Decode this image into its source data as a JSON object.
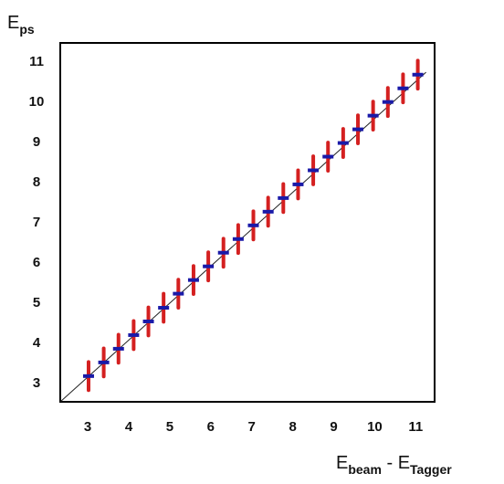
{
  "chart_data": {
    "type": "errorbar",
    "x_label": {
      "main": "E",
      "sub1": "beam",
      "sep": " - ",
      "main2": "E",
      "sub2": "Tagger"
    },
    "y_label": {
      "main": "E",
      "sub": "ps"
    },
    "x": [
      3.02,
      3.39,
      3.75,
      4.12,
      4.48,
      4.85,
      5.21,
      5.58,
      5.94,
      6.31,
      6.67,
      7.04,
      7.4,
      7.77,
      8.13,
      8.5,
      8.86,
      9.23,
      9.59,
      9.96,
      10.32,
      10.69,
      11.05
    ],
    "values": [
      3.19,
      3.53,
      3.87,
      4.21,
      4.55,
      4.89,
      5.24,
      5.58,
      5.92,
      6.26,
      6.6,
      6.94,
      7.28,
      7.62,
      7.96,
      8.31,
      8.65,
      8.99,
      9.33,
      9.67,
      10.01,
      10.35,
      10.69
    ],
    "errors": [
      0.35,
      0.35,
      0.35,
      0.35,
      0.35,
      0.35,
      0.35,
      0.35,
      0.35,
      0.35,
      0.35,
      0.35,
      0.35,
      0.35,
      0.35,
      0.35,
      0.35,
      0.35,
      0.35,
      0.35,
      0.35,
      0.35,
      0.35
    ],
    "color": "#1a1aa8",
    "error_color": "#d42020",
    "line": {
      "x": [
        2.33,
        11.25
      ],
      "y": [
        2.55,
        10.75
      ],
      "color": "#222222"
    },
    "xlim": [
      2.33,
      11.46
    ],
    "ylim": [
      2.55,
      11.48
    ],
    "xticks": [
      3,
      4,
      5,
      6,
      7,
      8,
      9,
      10,
      11
    ],
    "yticks": [
      3,
      4,
      5,
      6,
      7,
      8,
      9,
      10,
      11
    ],
    "grid": false
  }
}
